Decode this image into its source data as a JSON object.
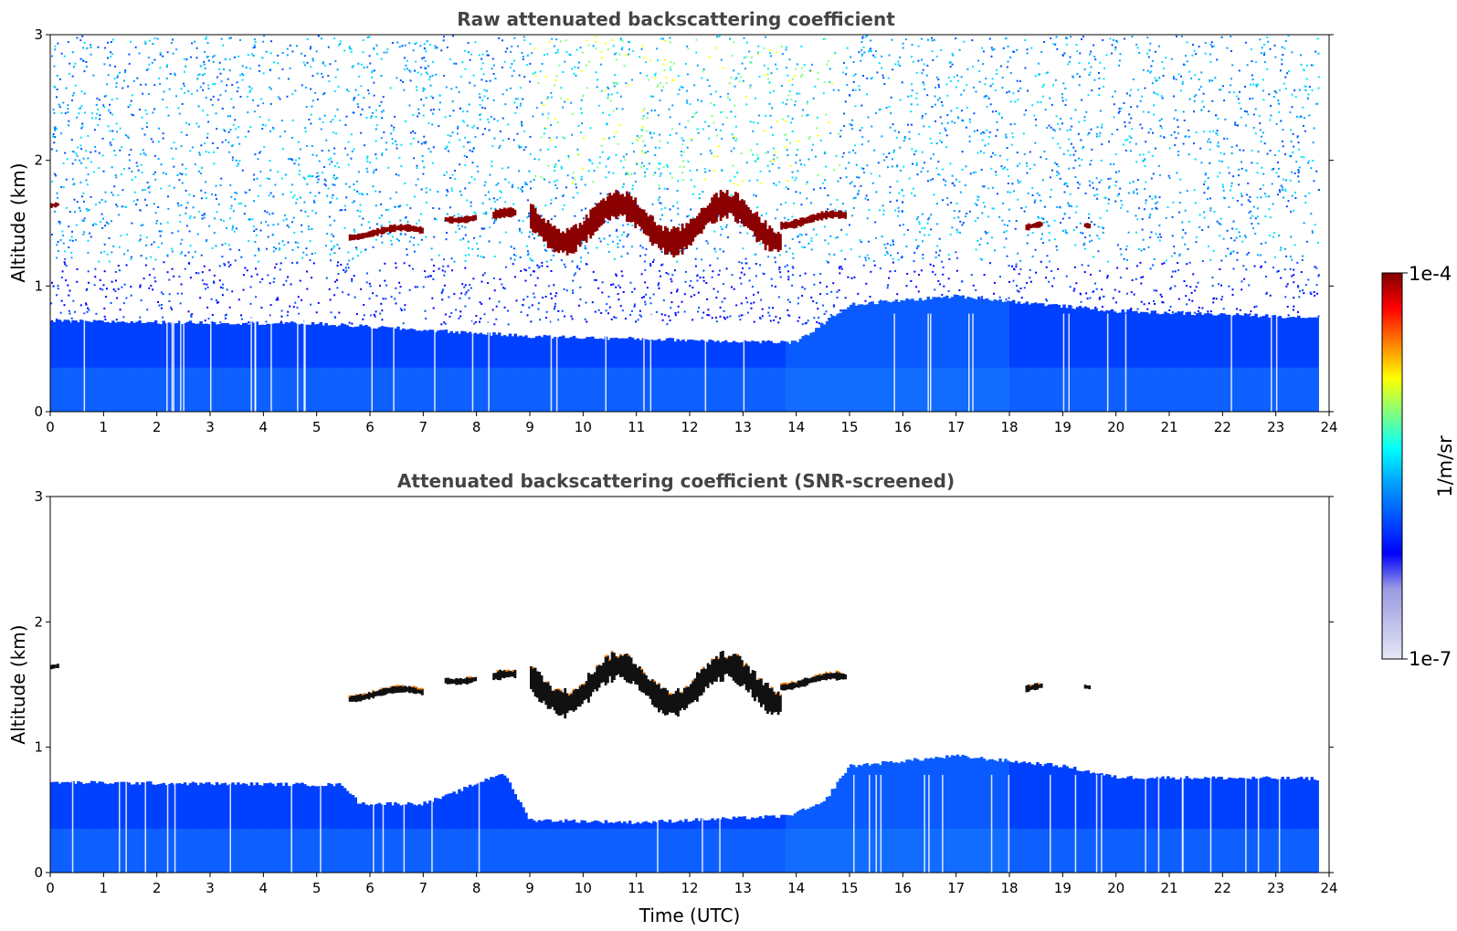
{
  "chart_data": [
    {
      "type": "heatmap",
      "title": "Raw attenuated backscattering coefficient",
      "xlabel": "",
      "ylabel": "Altitude (km)",
      "xlim": [
        0,
        24
      ],
      "ylim": [
        0,
        3
      ],
      "xticks": [
        "0",
        "1",
        "2",
        "3",
        "4",
        "5",
        "6",
        "7",
        "8",
        "9",
        "10",
        "11",
        "12",
        "13",
        "14",
        "15",
        "16",
        "17",
        "18",
        "19",
        "20",
        "21",
        "22",
        "23",
        "24"
      ],
      "yticks": [
        "0",
        "1",
        "2",
        "3"
      ],
      "data_extent_hours": 23.8,
      "boundary_layer_top_km": [
        {
          "t": 0,
          "z": 0.72
        },
        {
          "t": 5,
          "z": 0.7
        },
        {
          "t": 9,
          "z": 0.6
        },
        {
          "t": 14,
          "z": 0.55
        },
        {
          "t": 15,
          "z": 0.85
        },
        {
          "t": 17,
          "z": 0.92
        },
        {
          "t": 20,
          "z": 0.8
        },
        {
          "t": 23.8,
          "z": 0.75
        }
      ],
      "cloud_segments": [
        {
          "start": 0.0,
          "end": 0.15,
          "base_km": 1.6,
          "top_km": 1.68
        },
        {
          "start": 5.6,
          "end": 7.0,
          "base_km": 1.36,
          "top_km": 1.49
        },
        {
          "start": 7.4,
          "end": 8.0,
          "base_km": 1.5,
          "top_km": 1.62
        },
        {
          "start": 8.3,
          "end": 8.7,
          "base_km": 1.45,
          "top_km": 1.62
        },
        {
          "start": 9.0,
          "end": 13.7,
          "base_km": 1.25,
          "top_km": 1.75
        },
        {
          "start": 13.7,
          "end": 14.9,
          "base_km": 1.45,
          "top_km": 1.6
        },
        {
          "start": 18.3,
          "end": 18.6,
          "base_km": 1.4,
          "top_km": 1.52
        },
        {
          "start": 19.4,
          "end": 19.5,
          "base_km": 1.45,
          "top_km": 1.54
        }
      ],
      "noise_enhanced_period": [
        9.0,
        14.8
      ]
    },
    {
      "type": "heatmap",
      "title": "Attenuated backscattering coefficient (SNR-screened)",
      "xlabel": "Time (UTC)",
      "ylabel": "Altitude (km)",
      "xlim": [
        0,
        24
      ],
      "ylim": [
        0,
        3
      ],
      "xticks": [
        "0",
        "1",
        "2",
        "3",
        "4",
        "5",
        "6",
        "7",
        "8",
        "9",
        "10",
        "11",
        "12",
        "13",
        "14",
        "15",
        "16",
        "17",
        "18",
        "19",
        "20",
        "21",
        "22",
        "23",
        "24"
      ],
      "yticks": [
        "0",
        "1",
        "2",
        "3"
      ],
      "data_extent_hours": 23.8,
      "screened_layer_top_km": [
        {
          "t": 0,
          "z": 0.72
        },
        {
          "t": 5.5,
          "z": 0.7
        },
        {
          "t": 5.8,
          "z": 0.55
        },
        {
          "t": 7.0,
          "z": 0.55
        },
        {
          "t": 7.5,
          "z": 0.62
        },
        {
          "t": 8.5,
          "z": 0.8
        },
        {
          "t": 9.0,
          "z": 0.42
        },
        {
          "t": 11,
          "z": 0.4
        },
        {
          "t": 13.8,
          "z": 0.45
        },
        {
          "t": 14.5,
          "z": 0.55
        },
        {
          "t": 15,
          "z": 0.85
        },
        {
          "t": 17,
          "z": 0.93
        },
        {
          "t": 19,
          "z": 0.85
        },
        {
          "t": 20,
          "z": 0.76
        },
        {
          "t": 23.8,
          "z": 0.75
        }
      ]
    }
  ],
  "colorbar": {
    "max_label": "1e-4",
    "min_label": "1e-7",
    "unit_label": "1/m/sr",
    "colors": [
      "#e6e6f5",
      "#c0c0ea",
      "#9a9ae2",
      "#0000ff",
      "#0050ff",
      "#00a0ff",
      "#00ffff",
      "#80ff80",
      "#ffff00",
      "#ff8000",
      "#ff0000",
      "#800000"
    ]
  }
}
